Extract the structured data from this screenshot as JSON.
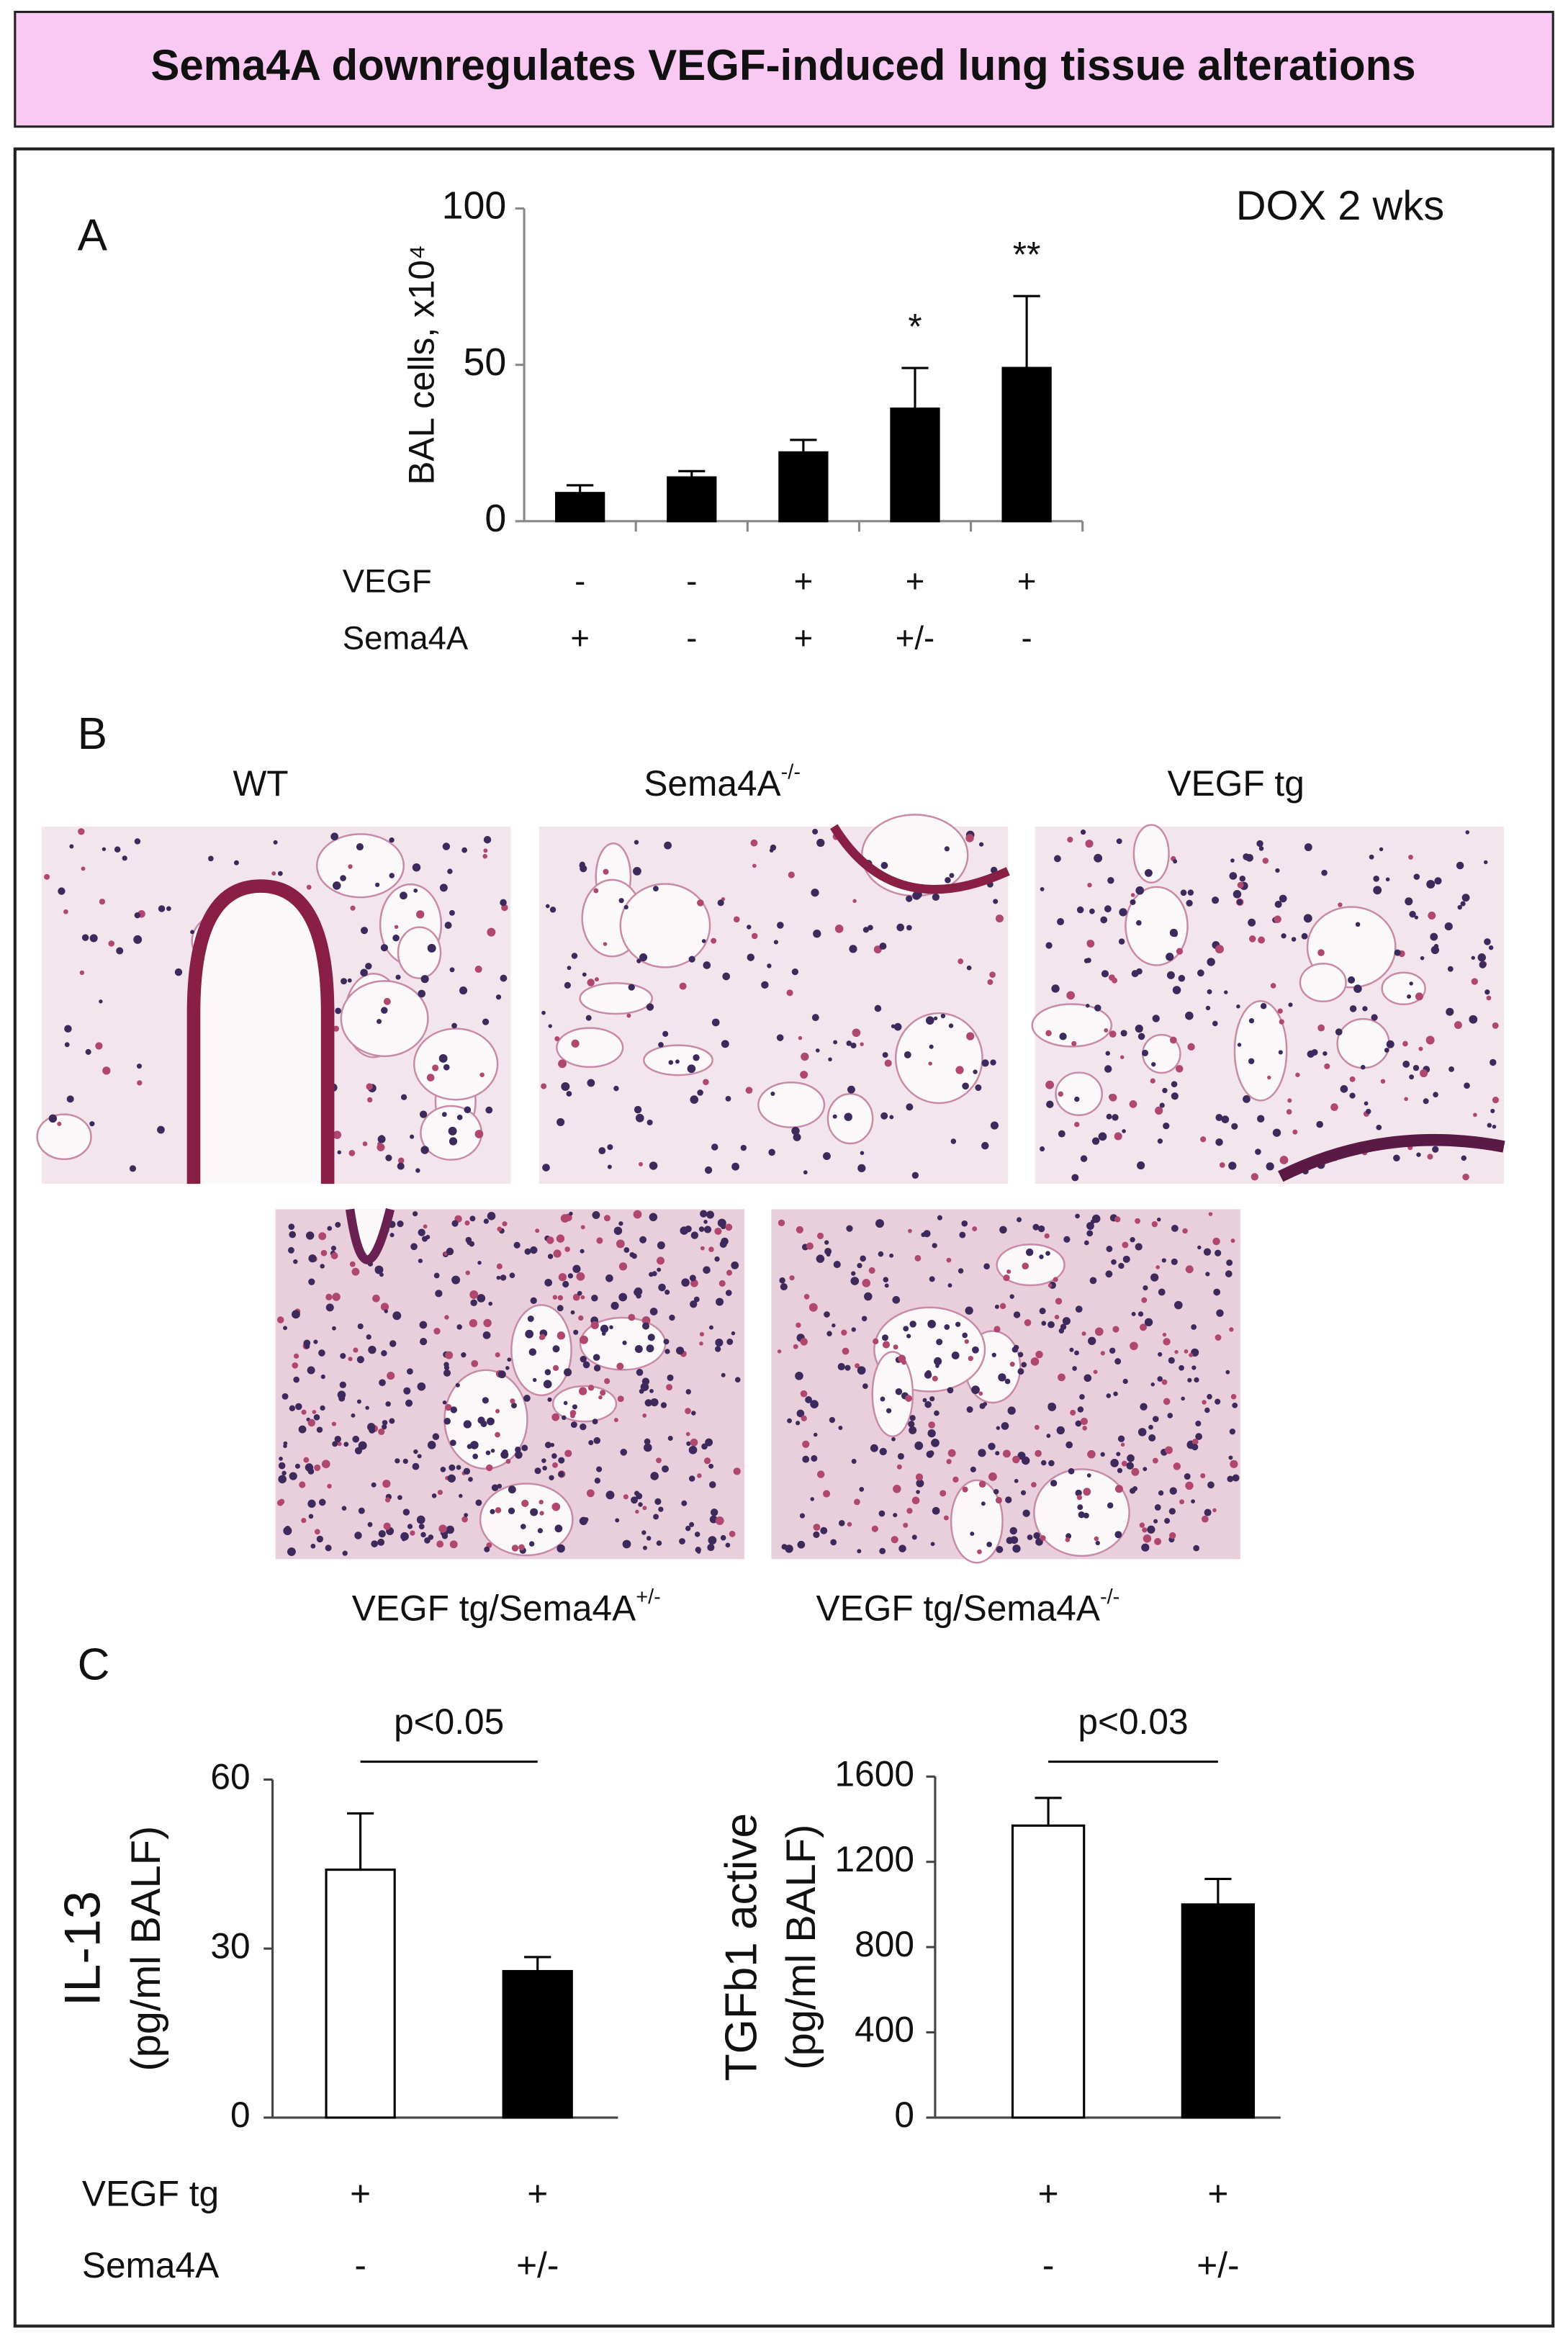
{
  "title": "Sema4A downregulates VEGF-induced lung tissue alterations",
  "panel_labels": [
    "A",
    "B",
    "C"
  ],
  "histology": {
    "captions": [
      {
        "text": "WT"
      },
      {
        "text": "Sema4A",
        "sup": "-/-"
      },
      {
        "text": "VEGF tg"
      },
      {
        "text": "VEGF tg/Sema4A",
        "sup": "+/-"
      },
      {
        "text": "VEGF tg/Sema4A",
        "sup": "-/-"
      }
    ]
  },
  "chart_data": [
    {
      "type": "bar",
      "ylabel": "BAL cells, x10⁴",
      "corner_text": "DOX 2 wks",
      "values": [
        9,
        14,
        22,
        36,
        49
      ],
      "errors": [
        2.5,
        2,
        4,
        13,
        23
      ],
      "colors": [
        "#000000",
        "#000000",
        "#000000",
        "#000000",
        "#000000"
      ],
      "ylim": [
        0,
        100
      ],
      "yticks": [
        0,
        50,
        100
      ],
      "annotations": [
        {
          "bar": 3,
          "text": "*"
        },
        {
          "bar": 4,
          "text": "**"
        }
      ],
      "condition_rows": [
        {
          "label": "VEGF",
          "values": [
            "-",
            "-",
            "+",
            "+",
            "+"
          ]
        },
        {
          "label": "Sema4A",
          "values": [
            "+",
            "-",
            "+",
            "+/-",
            "-"
          ]
        }
      ]
    },
    {
      "type": "bar",
      "ylabel": [
        "IL-13",
        "(pg/ml BALF)"
      ],
      "values": [
        44,
        26
      ],
      "errors": [
        10,
        2.5
      ],
      "colors": [
        "#ffffff",
        "#000000"
      ],
      "ylim": [
        0,
        60
      ],
      "yticks": [
        0,
        30,
        60
      ],
      "comparison": "p<0.05",
      "condition_rows": [
        {
          "label": "VEGF tg",
          "values": [
            "+",
            "+"
          ]
        },
        {
          "label": "Sema4A",
          "values": [
            "-",
            "+/-"
          ]
        }
      ]
    },
    {
      "type": "bar",
      "ylabel": [
        "TGFb1 active",
        "(pg/ml BALF)"
      ],
      "values": [
        1370,
        1000
      ],
      "errors": [
        130,
        120
      ],
      "colors": [
        "#ffffff",
        "#000000"
      ],
      "ylim": [
        0,
        1600
      ],
      "yticks": [
        0,
        400,
        800,
        1200,
        1600
      ],
      "comparison": "p<0.03",
      "condition_rows": [
        {
          "values": [
            "+",
            "+"
          ]
        },
        {
          "values": [
            "-",
            "+/-"
          ]
        }
      ]
    }
  ]
}
